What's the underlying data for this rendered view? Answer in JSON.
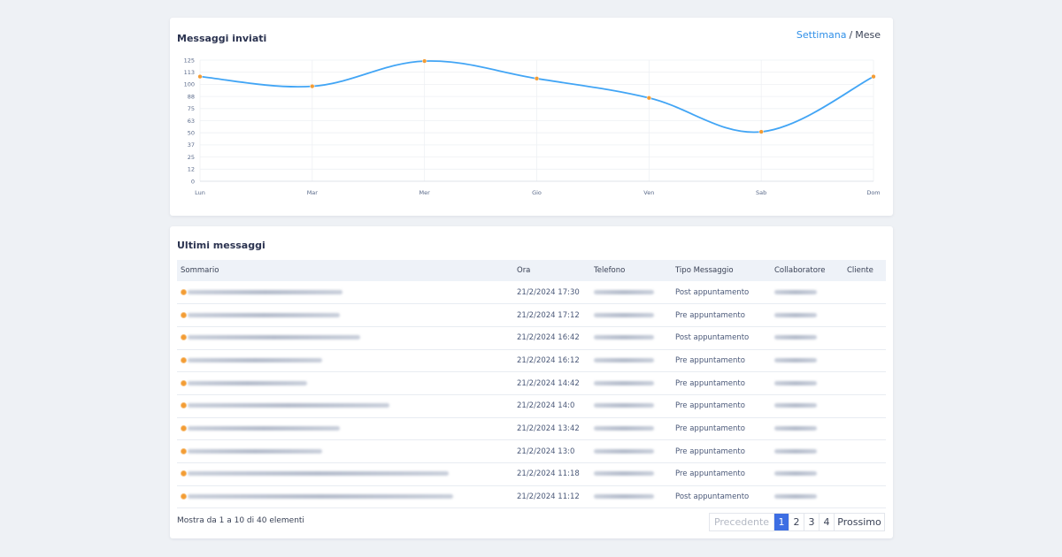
{
  "chart_card": {
    "title": "Messaggi inviati",
    "period_active": "Settimana",
    "period_separator": "/",
    "period_inactive": "Mese"
  },
  "chart_data": {
    "type": "line",
    "categories": [
      "Lun",
      "Mar",
      "Mer",
      "Gio",
      "Ven",
      "Sab",
      "Dom"
    ],
    "series": [
      {
        "values": [
          108,
          98,
          124,
          106,
          86,
          51,
          108
        ]
      }
    ],
    "y_ticks": [
      "125",
      "113",
      "100",
      "88",
      "75",
      "63",
      "50",
      "37",
      "25",
      "12",
      "0"
    ],
    "ylim": [
      0,
      125
    ],
    "grid": true,
    "line_color": "#42a5f5",
    "point_color": "#f39c34"
  },
  "table_card": {
    "title": "Ultimi messaggi",
    "columns": [
      "Sommario",
      "Ora",
      "Telefono",
      "Tipo Messaggio",
      "Collaboratore",
      "Cliente"
    ],
    "rows": [
      {
        "ora": "21/2/2024 17:30",
        "tipo": "Post appuntamento"
      },
      {
        "ora": "21/2/2024 17:12",
        "tipo": "Pre appuntamento"
      },
      {
        "ora": "21/2/2024 16:42",
        "tipo": "Post appuntamento"
      },
      {
        "ora": "21/2/2024 16:12",
        "tipo": "Pre appuntamento"
      },
      {
        "ora": "21/2/2024 14:42",
        "tipo": "Pre appuntamento"
      },
      {
        "ora": "21/2/2024 14:0",
        "tipo": "Pre appuntamento"
      },
      {
        "ora": "21/2/2024 13:42",
        "tipo": "Pre appuntamento"
      },
      {
        "ora": "21/2/2024 13:0",
        "tipo": "Pre appuntamento"
      },
      {
        "ora": "21/2/2024 11:18",
        "tipo": "Pre appuntamento"
      },
      {
        "ora": "21/2/2024 11:12",
        "tipo": "Post appuntamento"
      }
    ],
    "info": "Mostra da 1 a 10 di 40 elementi",
    "pagination": {
      "prev": "Precedente",
      "pages": [
        "1",
        "2",
        "3",
        "4"
      ],
      "current": "1",
      "next": "Prossimo"
    }
  }
}
